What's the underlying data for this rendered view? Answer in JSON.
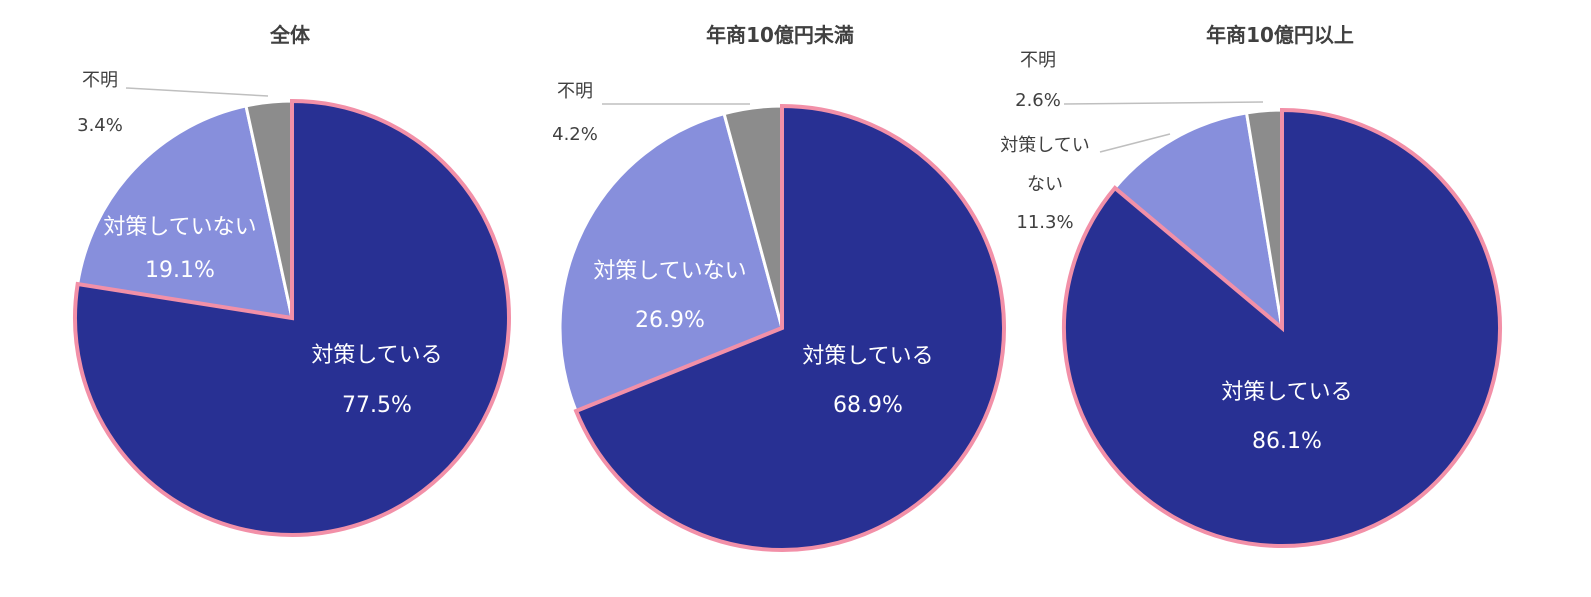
{
  "chart_data": [
    {
      "type": "pie",
      "title": "全体",
      "slices": [
        {
          "label": "対策している",
          "value": 77.5,
          "value_label": "77.5%",
          "color": "#283093"
        },
        {
          "label": "対策していない",
          "value": 19.1,
          "value_label": "19.1%",
          "color": "#878fdc"
        },
        {
          "label": "不明",
          "value": 3.4,
          "value_label": "3.4%",
          "color": "#8c8c8c"
        }
      ],
      "highlight_color": "#f290a8"
    },
    {
      "type": "pie",
      "title": "年商10億円未満",
      "slices": [
        {
          "label": "対策している",
          "value": 68.9,
          "value_label": "68.9%",
          "color": "#283093"
        },
        {
          "label": "対策していない",
          "value": 26.9,
          "value_label": "26.9%",
          "color": "#878fdc"
        },
        {
          "label": "不明",
          "value": 4.2,
          "value_label": "4.2%",
          "color": "#8c8c8c"
        }
      ],
      "highlight_color": "#f290a8"
    },
    {
      "type": "pie",
      "title": "年商10億円以上",
      "slices": [
        {
          "label": "対策している",
          "value": 86.1,
          "value_label": "86.1%",
          "color": "#283093"
        },
        {
          "label": "対策していない",
          "value": 11.3,
          "value_label": "11.3%",
          "color": "#878fdc",
          "label_lines": [
            "対策してい",
            "ない"
          ]
        },
        {
          "label": "不明",
          "value": 2.6,
          "value_label": "2.6%",
          "color": "#8c8c8c"
        }
      ],
      "highlight_color": "#f290a8"
    }
  ]
}
